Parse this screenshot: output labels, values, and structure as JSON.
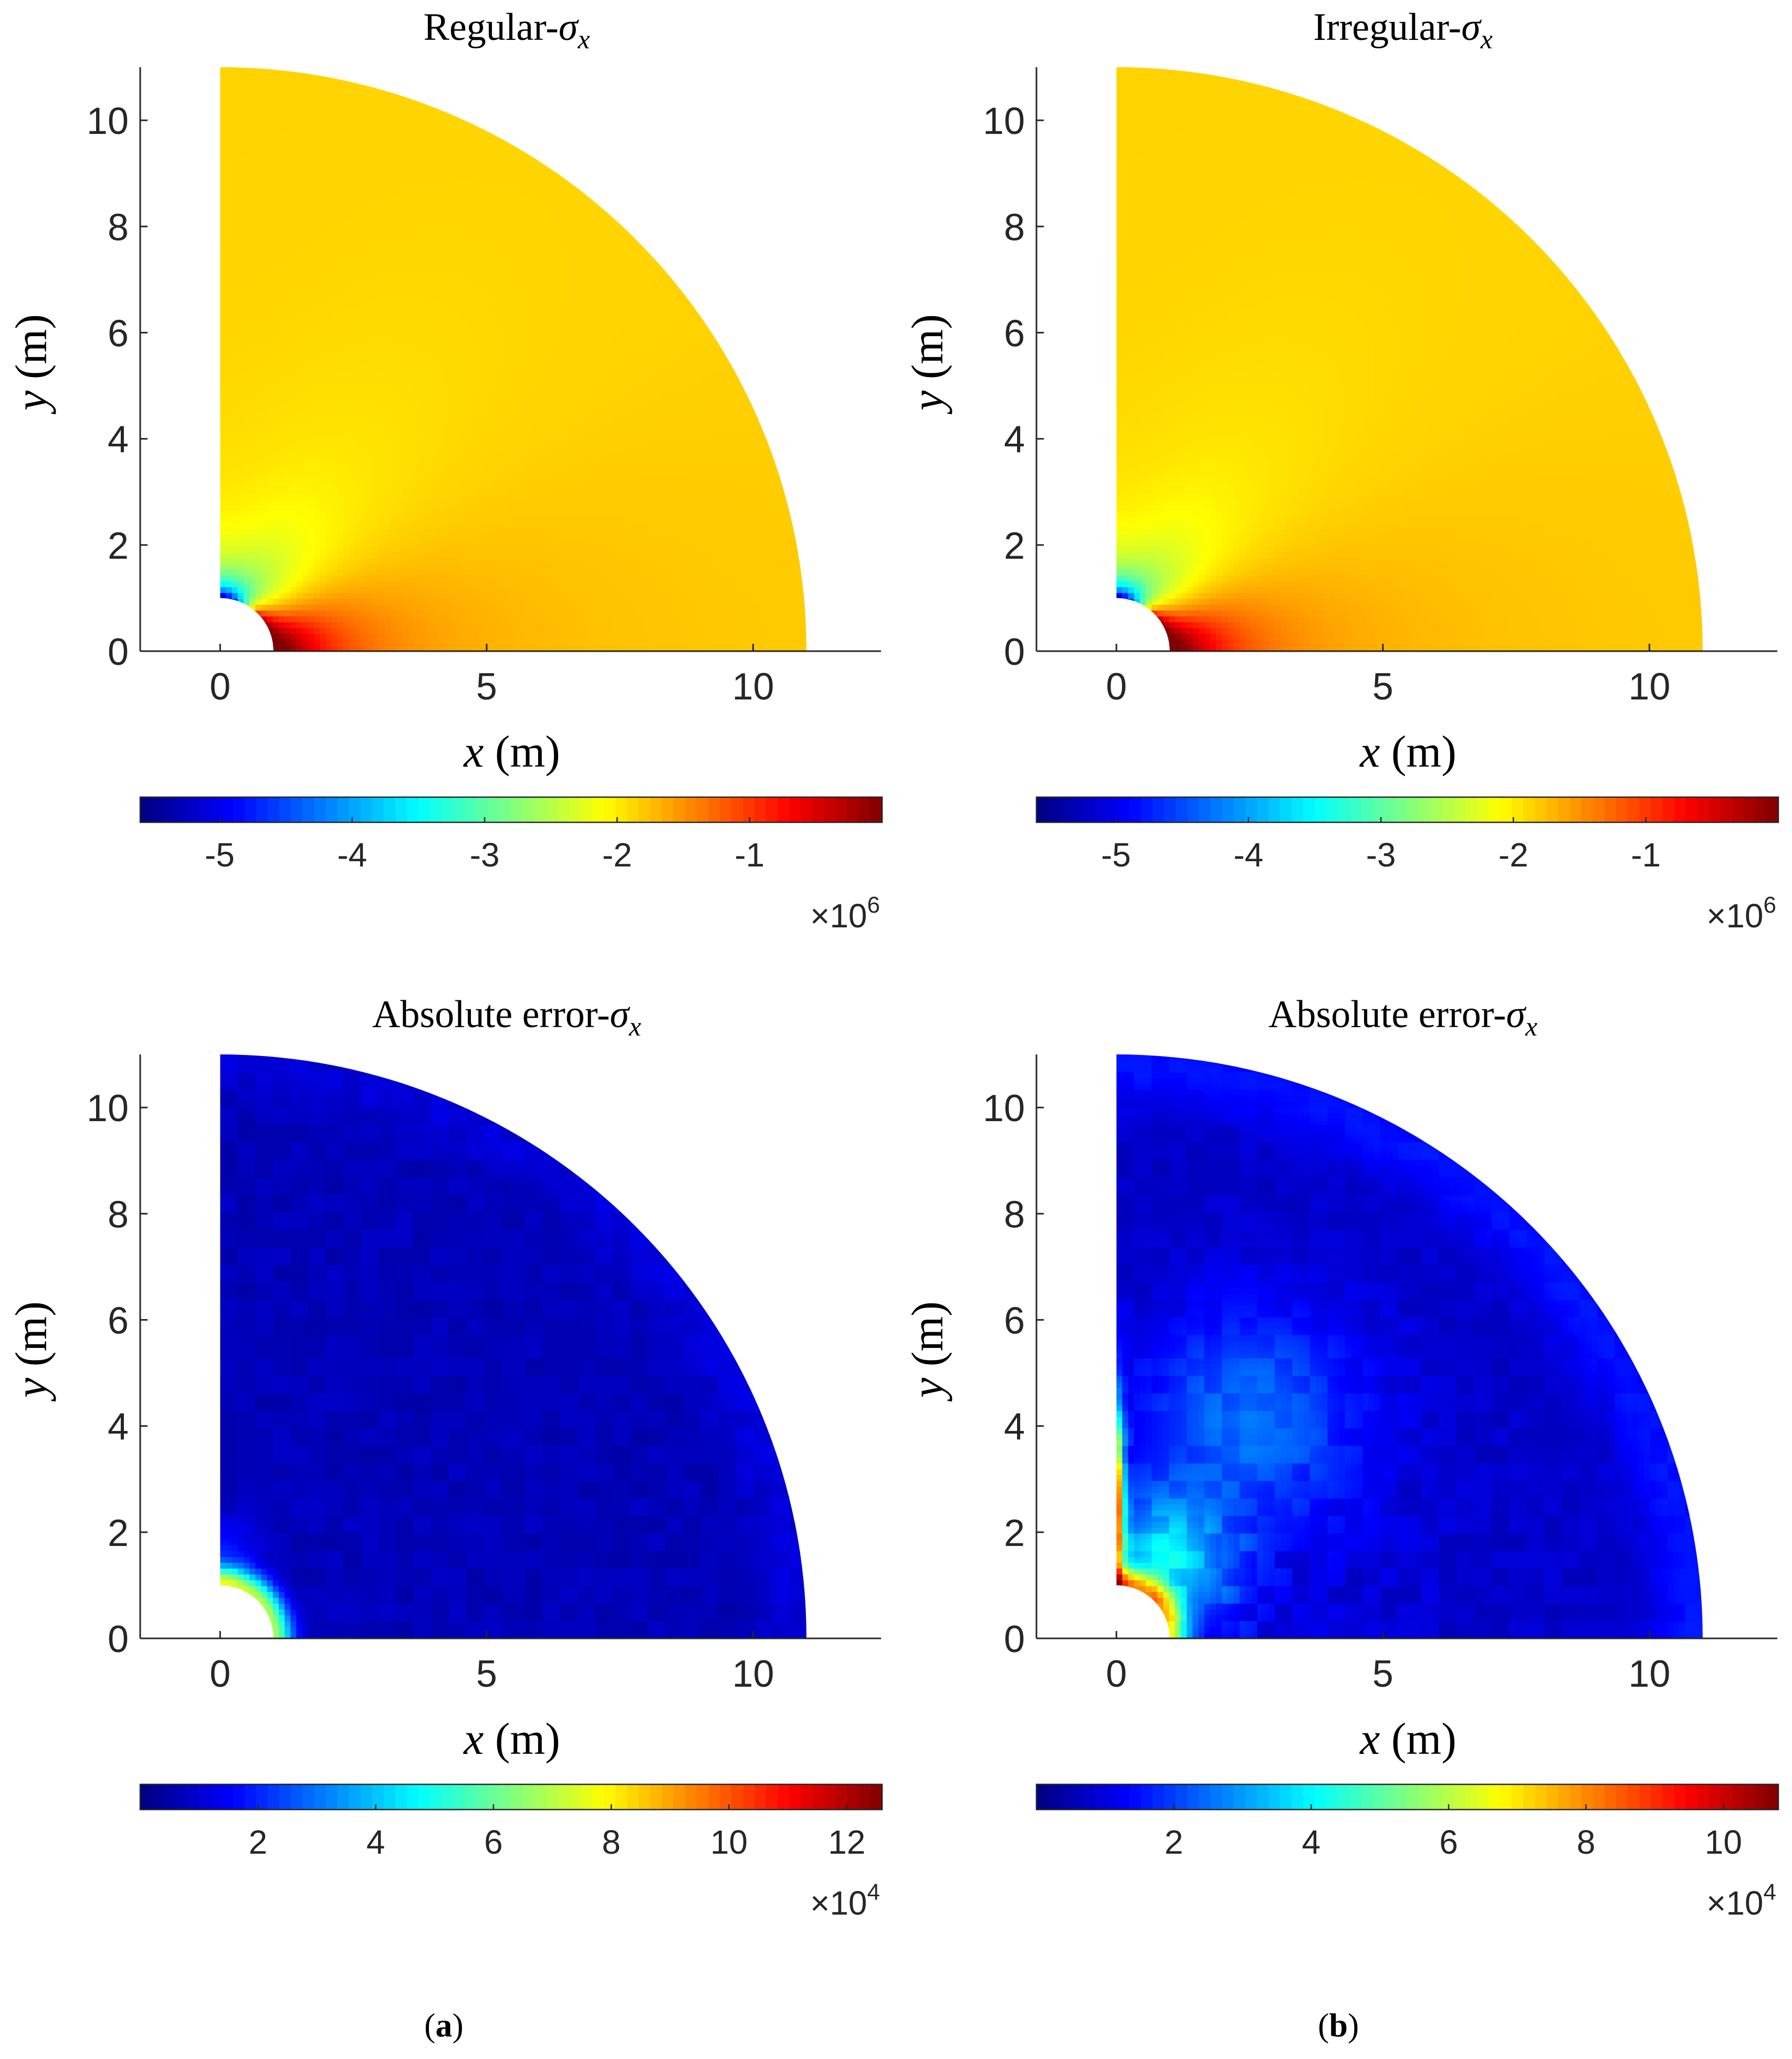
{
  "chart_data": [
    {
      "type": "heatmap",
      "title_text": "Regular-",
      "title_symbol": "σ",
      "title_sub": "x",
      "xlabel_var": "x",
      "xlabel_unit": "(m)",
      "ylabel_var": "y",
      "ylabel_unit": "(m)",
      "xlim": [
        -1.5,
        12.4
      ],
      "ylim": [
        0,
        11
      ],
      "xticks": [
        0,
        5,
        10
      ],
      "yticks": [
        0,
        2,
        4,
        6,
        8,
        10
      ],
      "domain": {
        "inner_radius": 1,
        "outer_radius": 11
      },
      "colormap": "jet",
      "colorbar": {
        "range": [
          -5.6,
          0
        ],
        "ticks": [
          -5,
          -4,
          -3,
          -2,
          -1
        ],
        "multiplier": "×10",
        "exponent": "6"
      },
      "field": "stress"
    },
    {
      "type": "heatmap",
      "title_text": "Irregular-",
      "title_symbol": "σ",
      "title_sub": "x",
      "xlabel_var": "x",
      "xlabel_unit": "(m)",
      "ylabel_var": "y",
      "ylabel_unit": "(m)",
      "xlim": [
        -1.5,
        12.4
      ],
      "ylim": [
        0,
        11
      ],
      "xticks": [
        0,
        5,
        10
      ],
      "yticks": [
        0,
        2,
        4,
        6,
        8,
        10
      ],
      "domain": {
        "inner_radius": 1,
        "outer_radius": 11
      },
      "colormap": "jet",
      "colorbar": {
        "range": [
          -5.6,
          0
        ],
        "ticks": [
          -5,
          -4,
          -3,
          -2,
          -1
        ],
        "multiplier": "×10",
        "exponent": "6"
      },
      "field": "stress"
    },
    {
      "type": "heatmap",
      "title_text": "Absolute error-",
      "title_symbol": "σ",
      "title_sub": "x",
      "xlabel_var": "x",
      "xlabel_unit": "(m)",
      "ylabel_var": "y",
      "ylabel_unit": "(m)",
      "xlim": [
        -1.5,
        12.4
      ],
      "ylim": [
        0,
        11
      ],
      "xticks": [
        0,
        5,
        10
      ],
      "yticks": [
        0,
        2,
        4,
        6,
        8,
        10
      ],
      "domain": {
        "inner_radius": 1,
        "outer_radius": 11
      },
      "colormap": "jet",
      "colorbar": {
        "range": [
          0,
          12.6
        ],
        "ticks": [
          2,
          4,
          6,
          8,
          10,
          12
        ],
        "multiplier": "×10",
        "exponent": "4"
      },
      "field": "error-regular"
    },
    {
      "type": "heatmap",
      "title_text": "Absolute error-",
      "title_symbol": "σ",
      "title_sub": "x",
      "xlabel_var": "x",
      "xlabel_unit": "(m)",
      "ylabel_var": "y",
      "ylabel_unit": "(m)",
      "xlim": [
        -1.5,
        12.4
      ],
      "ylim": [
        0,
        11
      ],
      "xticks": [
        0,
        5,
        10
      ],
      "yticks": [
        0,
        2,
        4,
        6,
        8,
        10
      ],
      "domain": {
        "inner_radius": 1,
        "outer_radius": 11
      },
      "colormap": "jet",
      "colorbar": {
        "range": [
          0,
          10.8
        ],
        "ticks": [
          2,
          4,
          6,
          8,
          10
        ],
        "multiplier": "×10",
        "exponent": "4"
      },
      "field": "error-irregular"
    }
  ],
  "sub_labels": [
    {
      "letter": "a",
      "open": "(",
      "close": ")"
    },
    {
      "letter": "b",
      "open": "(",
      "close": ")"
    }
  ]
}
